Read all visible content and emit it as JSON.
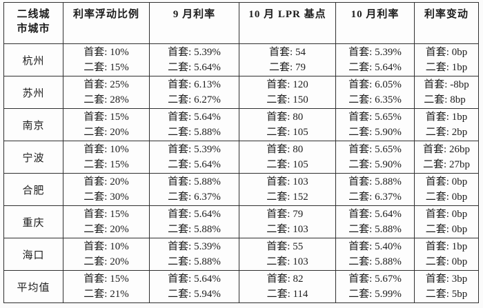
{
  "table": {
    "columns": [
      "二线城\n市城市",
      "利率浮动比例",
      "9 月利率",
      "10 月 LPR 基点",
      "10 月利率",
      "利率变动"
    ],
    "rows": [
      {
        "city": "杭州",
        "cells": [
          [
            "首套: 10%",
            "二套: 15%"
          ],
          [
            "首套: 5.39%",
            "二套: 5.64%"
          ],
          [
            "首套: 54",
            "二套: 79"
          ],
          [
            "首套: 5.39%",
            "二套: 5.64%"
          ],
          [
            "首套: 0bp",
            "二套: 1bp"
          ]
        ]
      },
      {
        "city": "苏州",
        "cells": [
          [
            "首套: 25%",
            "二套: 28%"
          ],
          [
            "首套: 6.13%",
            "二套: 6.27%"
          ],
          [
            "首套: 120",
            "二套: 150"
          ],
          [
            "首套: 6.05%",
            "二套: 6.35%"
          ],
          [
            "首套: -8bp",
            "二套: 8bp"
          ]
        ]
      },
      {
        "city": "南京",
        "cells": [
          [
            "首套: 15%",
            "二套: 20%"
          ],
          [
            "首套: 5.64%",
            "二套: 5.88%"
          ],
          [
            "首套: 80",
            "二套: 105"
          ],
          [
            "首套: 5.65%",
            "二套: 5.90%"
          ],
          [
            "首套: 1bp",
            "二套: 2bp"
          ]
        ]
      },
      {
        "city": "宁波",
        "cells": [
          [
            "首套: 10%",
            "二套: 15%"
          ],
          [
            "首套: 5.39%",
            "二套: 5.64%"
          ],
          [
            "首套: 80",
            "二套: 105"
          ],
          [
            "首套: 5.65%",
            "二套: 5.90%"
          ],
          [
            "首套: 26bp",
            "二套: 27bp"
          ]
        ]
      },
      {
        "city": "合肥",
        "cells": [
          [
            "首套: 20%",
            "二套: 30%"
          ],
          [
            "首套: 5.88%",
            "二套: 6.37%"
          ],
          [
            "首套: 103",
            "二套: 152"
          ],
          [
            "首套: 5.88%",
            "二套: 6.37%"
          ],
          [
            "首套: 0bp",
            "二套: 0bp"
          ]
        ]
      },
      {
        "city": "重庆",
        "cells": [
          [
            "首套: 15%",
            "二套: 20%"
          ],
          [
            "首套: 5.64%",
            "二套: 5.88%"
          ],
          [
            "首套: 79",
            "二套: 103"
          ],
          [
            "首套: 5.64%",
            "二套: 5.88%"
          ],
          [
            "首套: 0bp",
            "二套: 0bp"
          ]
        ]
      },
      {
        "city": "海口",
        "cells": [
          [
            "首套: 10%",
            "二套: 20%"
          ],
          [
            "首套: 5.39%",
            "二套: 5.88%"
          ],
          [
            "首套: 55",
            "二套: 103"
          ],
          [
            "首套: 5.40%",
            "二套: 5.88%"
          ],
          [
            "首套: 1bp",
            "二套: 0bp"
          ]
        ]
      },
      {
        "city": "平均值",
        "cells": [
          [
            "首套: 15%",
            "二套: 21%"
          ],
          [
            "首套: 5.64%",
            "二套: 5.94%"
          ],
          [
            "首套: 82",
            "二套: 114"
          ],
          [
            "首套: 5.67%",
            "二套: 5.99%"
          ],
          [
            "首套: 3bp",
            "二套: 5bp"
          ]
        ]
      }
    ]
  },
  "colors": {
    "border": "#2e2e2e",
    "text": "#1c1c1c",
    "background": "#fbfbfb"
  }
}
